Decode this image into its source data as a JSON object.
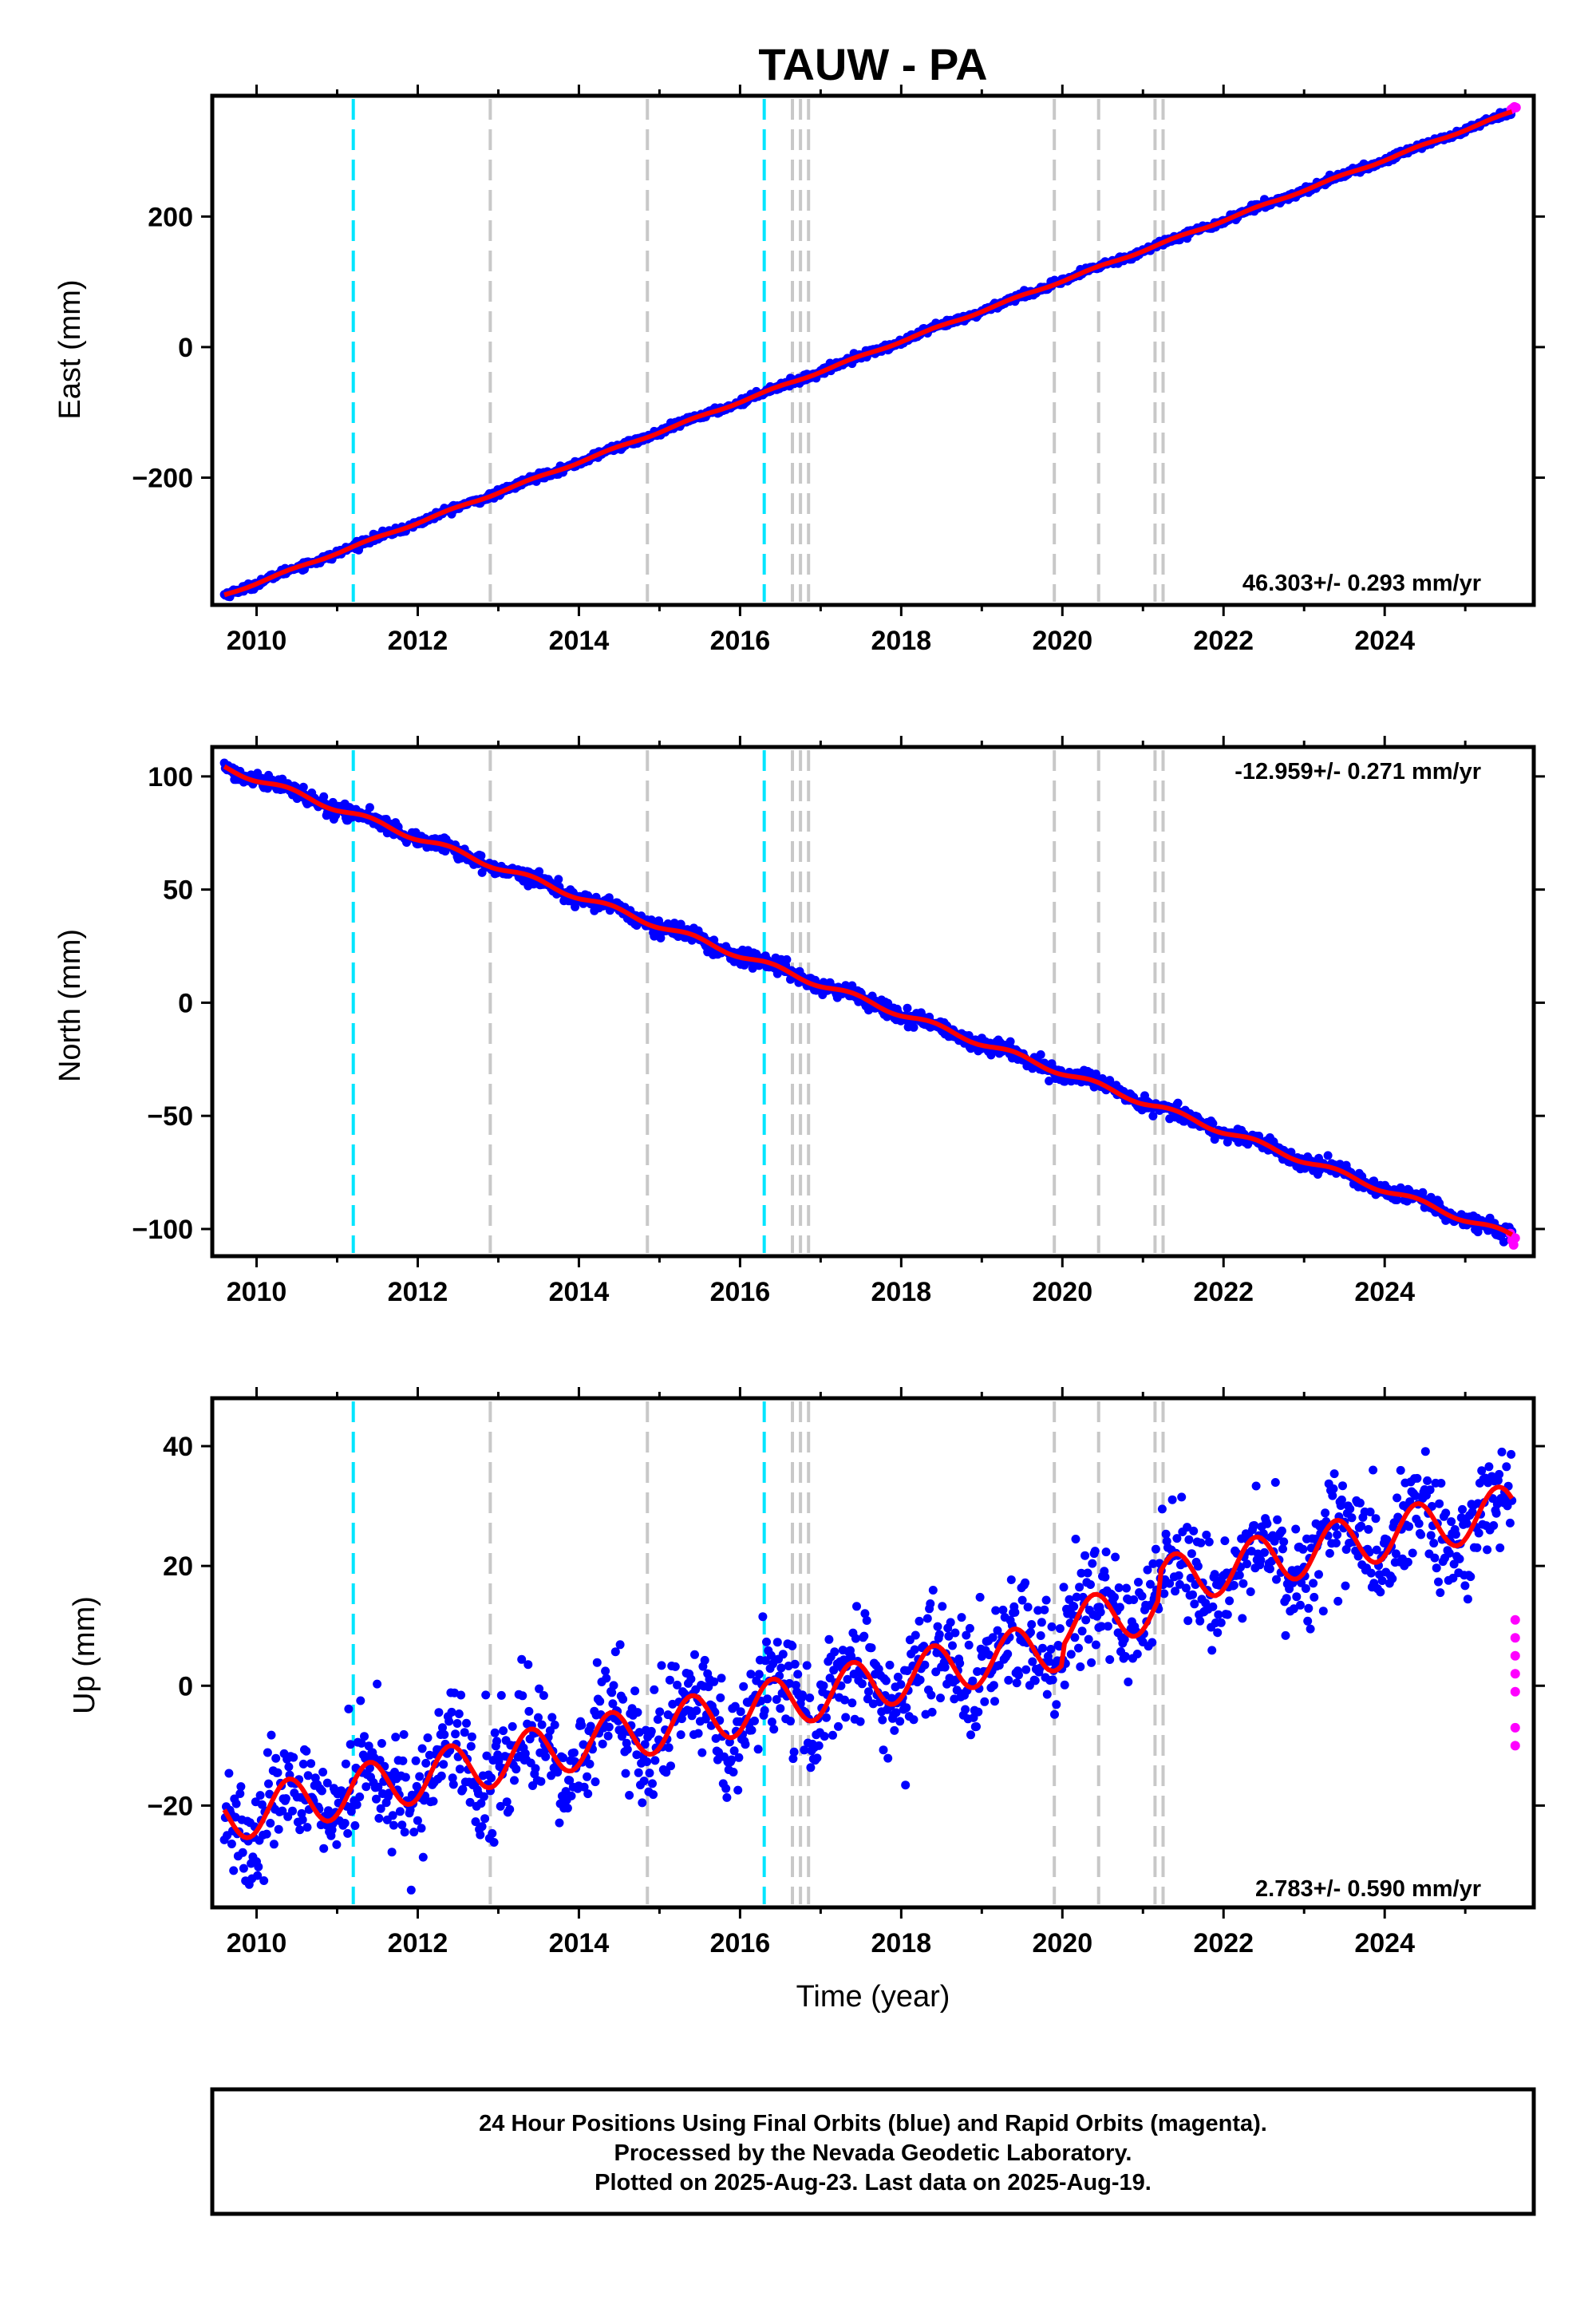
{
  "title": "TAUW - PA",
  "colors": {
    "final_orbits": "#0000ff",
    "rapid_orbits": "#ff00ff",
    "trend": "#ff0000",
    "event_cyan": "#00e5ff",
    "event_gray": "#c8c8c8"
  },
  "chart_data": [
    {
      "type": "scatter",
      "name": "east",
      "ylabel": "East (mm)",
      "xlabel": "",
      "xlim": [
        2009.45,
        2025.85
      ],
      "ylim": [
        -395,
        385
      ],
      "xticks": [
        2010,
        2012,
        2014,
        2016,
        2018,
        2020,
        2022,
        2024
      ],
      "yticks": [
        -200,
        0,
        200
      ],
      "rate_text": "46.303+/- 0.293 mm/yr",
      "rate_position": "bottom-right",
      "start": [
        2009.6,
        -380
      ],
      "rate": 46.303,
      "seasonal_amplitude": 1.5,
      "noise_sd": 2.6,
      "rapid_points": [
        [
          2025.57,
          364
        ],
        [
          2025.59,
          366
        ],
        [
          2025.61,
          368
        ],
        [
          2025.63,
          367
        ]
      ]
    },
    {
      "type": "scatter",
      "name": "north",
      "ylabel": "North (mm)",
      "xlabel": "",
      "xlim": [
        2009.45,
        2025.85
      ],
      "ylim": [
        -112,
        113
      ],
      "xticks": [
        2010,
        2012,
        2014,
        2016,
        2018,
        2020,
        2022,
        2024
      ],
      "yticks": [
        -100,
        -50,
        0,
        50,
        100
      ],
      "rate_text": "-12.959+/- 0.271 mm/yr",
      "rate_position": "top-right",
      "start": [
        2009.6,
        104
      ],
      "rate": -12.959,
      "seasonal_amplitude": 1.3,
      "noise_sd": 1.7,
      "rapid_points": [
        [
          2025.56,
          -102
        ],
        [
          2025.58,
          -105
        ],
        [
          2025.6,
          -107
        ],
        [
          2025.62,
          -104
        ]
      ]
    },
    {
      "type": "scatter",
      "name": "up",
      "ylabel": "Up (mm)",
      "xlabel": "Time (year)",
      "xlim": [
        2009.45,
        2025.85
      ],
      "ylim": [
        -37,
        48
      ],
      "xticks": [
        2010,
        2012,
        2014,
        2016,
        2018,
        2020,
        2022,
        2024
      ],
      "yticks": [
        -20,
        0,
        20,
        40
      ],
      "rate_text": "2.783+/- 0.590 mm/yr",
      "rate_position": "bottom-right",
      "start": [
        2009.6,
        -22
      ],
      "rate": 2.783,
      "seasonal_amplitude": 4.2,
      "noise_sd": 4.6,
      "offsets": [
        [
          2020.0,
          3
        ],
        [
          2021.2,
          4
        ]
      ],
      "rapid_points": [
        [
          2025.62,
          11
        ],
        [
          2025.62,
          8
        ],
        [
          2025.62,
          5
        ],
        [
          2025.62,
          2
        ],
        [
          2025.62,
          -1
        ],
        [
          2025.62,
          -7
        ],
        [
          2025.62,
          -10
        ]
      ]
    }
  ],
  "event_lines": [
    {
      "year": 2011.2,
      "kind": "cyan"
    },
    {
      "year": 2012.9,
      "kind": "gray"
    },
    {
      "year": 2014.85,
      "kind": "gray"
    },
    {
      "year": 2016.3,
      "kind": "cyan"
    },
    {
      "year": 2016.65,
      "kind": "gray"
    },
    {
      "year": 2016.75,
      "kind": "gray"
    },
    {
      "year": 2016.85,
      "kind": "gray"
    },
    {
      "year": 2019.9,
      "kind": "gray"
    },
    {
      "year": 2020.45,
      "kind": "gray"
    },
    {
      "year": 2021.15,
      "kind": "gray"
    },
    {
      "year": 2021.25,
      "kind": "gray"
    }
  ],
  "footer": {
    "line1": "24 Hour Positions Using Final Orbits (blue) and Rapid Orbits (magenta).",
    "line2": "Processed by the Nevada Geodetic Laboratory.",
    "line3": "Plotted on 2025-Aug-23. Last data on 2025-Aug-19."
  }
}
